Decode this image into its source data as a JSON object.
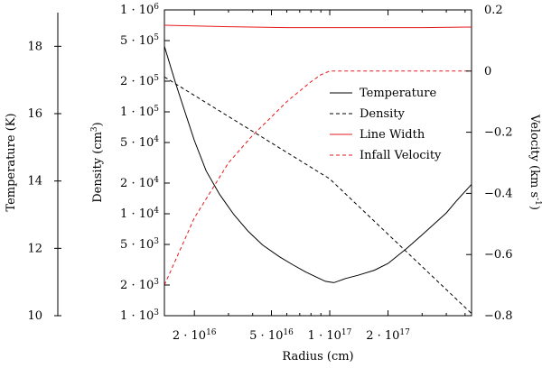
{
  "chart_data": {
    "type": "line",
    "x_axis": {
      "label": "Radius (cm)",
      "scale": "log",
      "range": [
        1.4e+16,
        5.4e+17
      ],
      "ticks": [
        {
          "value": 2e+16,
          "label": "2 · 10^16"
        },
        {
          "value": 5e+16,
          "label": "5 · 10^16"
        },
        {
          "value": 1e+17,
          "label": "1 · 10^17"
        },
        {
          "value": 2e+17,
          "label": "2 · 10^17"
        }
      ]
    },
    "y_axes": {
      "temperature": {
        "label": "Temperature (K)",
        "scale": "linear",
        "range": [
          10,
          19
        ],
        "ticks": [
          10,
          12,
          14,
          16,
          18
        ]
      },
      "density": {
        "label": "Density (cm^3)",
        "scale": "log",
        "range": [
          1000,
          1000000
        ],
        "ticks": [
          {
            "value": 1000,
            "label": "1 · 10^3"
          },
          {
            "value": 2000,
            "label": "2 · 10^3"
          },
          {
            "value": 5000,
            "label": "5 · 10^3"
          },
          {
            "value": 10000,
            "label": "1 · 10^4"
          },
          {
            "value": 20000,
            "label": "2 · 10^4"
          },
          {
            "value": 50000,
            "label": "5 · 10^4"
          },
          {
            "value": 100000,
            "label": "1 · 10^5"
          },
          {
            "value": 200000,
            "label": "2 · 10^5"
          },
          {
            "value": 500000,
            "label": "5 · 10^5"
          },
          {
            "value": 1000000,
            "label": "1 · 10^6"
          }
        ]
      },
      "velocity": {
        "label": "Velocity (km s^-1)",
        "scale": "linear",
        "range": [
          -0.8,
          0.2
        ],
        "ticks": [
          {
            "value": 0.2,
            "label": "0.2"
          },
          {
            "value": 0,
            "label": "0"
          },
          {
            "value": -0.2,
            "label": "−0.2"
          },
          {
            "value": -0.4,
            "label": "−0.4"
          },
          {
            "value": -0.6,
            "label": "−0.6"
          },
          {
            "value": -0.8,
            "label": "−0.8"
          }
        ]
      }
    },
    "legend_position": "top-right",
    "series": [
      {
        "name": "Temperature",
        "axis": "temperature",
        "color": "#000000",
        "dash": "solid",
        "x": [
          1.4e+16,
          1.6e+16,
          1.8e+16,
          2e+16,
          2.3e+16,
          2.7e+16,
          3.2e+16,
          3.8e+16,
          4.5e+16,
          5.5e+16,
          6.5e+16,
          7.5e+16,
          8.5e+16,
          9.5e+16,
          1.05e+17,
          1.2e+17,
          1.4e+17,
          1.7e+17,
          2e+17,
          2.5e+17,
          3e+17,
          3.5e+17,
          4e+17,
          4.5e+17,
          5.4e+17
        ],
        "y": [
          18.0,
          16.9,
          16.0,
          15.2,
          14.3,
          13.6,
          13.0,
          12.5,
          12.1,
          11.75,
          11.5,
          11.3,
          11.15,
          11.02,
          10.98,
          11.1,
          11.2,
          11.35,
          11.55,
          12.0,
          12.4,
          12.75,
          13.05,
          13.4,
          13.9
        ]
      },
      {
        "name": "Density",
        "axis": "density",
        "color": "#000000",
        "dash": "dashed",
        "x": [
          1.4e+16,
          1e+17,
          5.4e+17
        ],
        "y": [
          220000,
          22000,
          1050
        ]
      },
      {
        "name": "Line Width",
        "axis": "velocity",
        "color": "#e41a1c",
        "dash": "solid",
        "x": [
          1.4e+16,
          3e+16,
          6e+16,
          1.2e+17,
          3e+17,
          5.4e+17
        ],
        "y": [
          0.15,
          0.145,
          0.142,
          0.142,
          0.142,
          0.144
        ]
      },
      {
        "name": "Infall Velocity",
        "axis": "velocity",
        "color": "#e41a1c",
        "dash": "dashed",
        "x": [
          1.4e+16,
          2e+16,
          3e+16,
          4e+16,
          5e+16,
          6e+16,
          7e+16,
          8e+16,
          9e+16,
          1e+17,
          2e+17,
          5.4e+17
        ],
        "y": [
          -0.7,
          -0.48,
          -0.3,
          -0.21,
          -0.15,
          -0.1,
          -0.065,
          -0.035,
          -0.012,
          0.0,
          0.0,
          0.0
        ]
      }
    ]
  }
}
